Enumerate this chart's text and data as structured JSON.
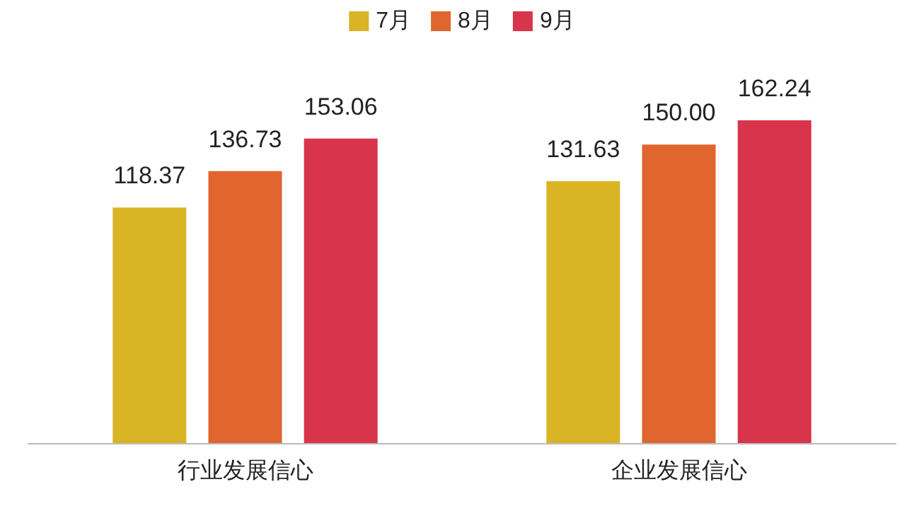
{
  "chart_data": {
    "type": "bar",
    "categories": [
      "行业发展信心",
      "企业发展信心"
    ],
    "series": [
      {
        "name": "7月",
        "color": "#d9b424",
        "values": [
          118.37,
          131.63
        ],
        "value_labels": [
          "118.37",
          "131.63"
        ]
      },
      {
        "name": "8月",
        "color": "#e0652e",
        "values": [
          136.73,
          150.0
        ],
        "value_labels": [
          "136.73",
          "150.00"
        ]
      },
      {
        "name": "9月",
        "color": "#d8344c",
        "values": [
          153.06,
          162.24
        ],
        "value_labels": [
          "153.06",
          "162.24"
        ]
      }
    ],
    "legend": "top",
    "grid": false
  }
}
